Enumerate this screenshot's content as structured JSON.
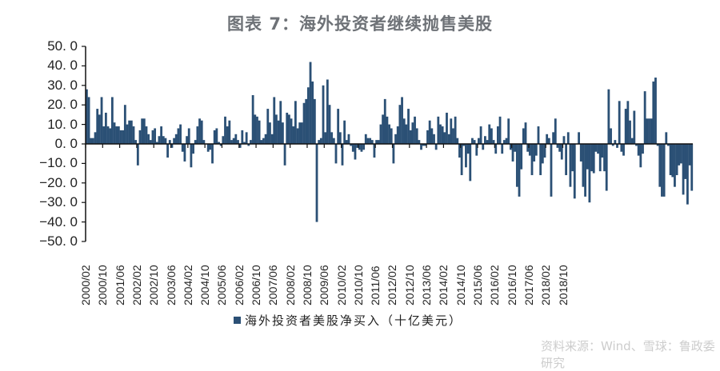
{
  "title": "图表 7：海外投资者继续抛售美股",
  "legend": {
    "label": "海外投资者美股净买入（十亿美元）",
    "color": "#2b5075"
  },
  "watermark": "资料来源：Wind、雪球：鲁政委研究",
  "chart_data": {
    "type": "bar",
    "title": "图表 7：海外投资者继续抛售美股",
    "xlabel": "",
    "ylabel": "",
    "ylim": [
      -50,
      50
    ],
    "yticks": [
      "50.0",
      "40.0",
      "30.0",
      "20.0",
      "10.0",
      "0.0",
      "-10.0",
      "-20.0",
      "-30.0",
      "-40.0",
      "-50.0"
    ],
    "xtick_labels": [
      "2000/02",
      "2000/10",
      "2001/06",
      "2002/02",
      "2002/10",
      "2003/06",
      "2004/02",
      "2004/10",
      "2005/06",
      "2006/02",
      "2006/10",
      "2007/06",
      "2008/02",
      "2008/10",
      "2009/06",
      "2010/02",
      "2010/10",
      "2011/06",
      "2012/02",
      "2012/10",
      "2013/06",
      "2014/02",
      "2014/10",
      "2015/06",
      "2016/02",
      "2016/10",
      "2017/06",
      "2018/02",
      "2018/10"
    ],
    "grid": false,
    "legend_position": "bottom",
    "series": [
      {
        "name": "海外投资者美股净买入（十亿美元）",
        "start": "2000/02",
        "frequency": "monthly",
        "values": [
          28,
          24,
          3,
          3,
          6,
          18,
          15,
          24,
          9,
          16,
          9,
          8,
          24,
          11,
          9,
          9,
          7,
          7,
          20,
          10,
          12,
          12,
          9,
          2,
          -11,
          7,
          13,
          13,
          9,
          5,
          2,
          7,
          8,
          1,
          4,
          9,
          4,
          3,
          -7,
          2,
          -2,
          3,
          5,
          8,
          10,
          -4,
          -9,
          4,
          8,
          -12,
          -5,
          2,
          9,
          13,
          12,
          2,
          0,
          -4,
          -3,
          -10,
          7,
          8,
          1,
          -1,
          4,
          14,
          9,
          12,
          2,
          3,
          5,
          2,
          -2,
          7,
          1,
          6,
          -1,
          2,
          25,
          15,
          14,
          12,
          2,
          3,
          5,
          18,
          11,
          5,
          24,
          15,
          12,
          22,
          11,
          -11,
          16,
          15,
          13,
          9,
          22,
          8,
          11,
          11,
          21,
          23,
          29,
          42,
          32,
          23,
          -40,
          2,
          3,
          30,
          6,
          33,
          20,
          6,
          3,
          -10,
          18,
          6,
          -11,
          12,
          2,
          5,
          -1,
          -4,
          -8,
          -2,
          -3,
          -4,
          -3,
          5,
          3,
          3,
          2,
          -7,
          2,
          2,
          10,
          15,
          23,
          14,
          10,
          8,
          -10,
          5,
          9,
          20,
          24,
          13,
          10,
          18,
          7,
          11,
          14,
          8,
          2,
          -3,
          -1,
          -1,
          7,
          12,
          8,
          5,
          -3,
          14,
          10,
          9,
          6,
          16,
          5,
          13,
          8,
          14,
          3,
          -7,
          -16,
          -1,
          -12,
          -5,
          -19,
          3,
          2,
          -6,
          3,
          9,
          -3,
          4,
          2,
          10,
          8,
          2,
          -5,
          9,
          14,
          -5,
          2,
          3,
          13,
          -3,
          -9,
          -4,
          -22,
          -27,
          -13,
          8,
          11,
          -4,
          -6,
          -16,
          -9,
          -6,
          9,
          -16,
          -10,
          -7,
          5,
          3,
          -27,
          6,
          13,
          -2,
          -4,
          -8,
          4,
          -16,
          6,
          -22,
          -14,
          -28,
          0,
          6,
          -9,
          -22,
          -27,
          -13,
          -30,
          -14,
          -15,
          -4,
          -5,
          -14,
          -7,
          -14,
          -24,
          28,
          8,
          -1,
          2,
          -2,
          22,
          -4,
          -6,
          18,
          22,
          12,
          3,
          17,
          -1,
          -6,
          -12,
          -5,
          27,
          13,
          13,
          13,
          32,
          34,
          -1,
          -22,
          -27,
          -27,
          6,
          -1,
          -16,
          -17,
          -22,
          -16,
          -11,
          -10,
          -26,
          -18,
          -31,
          -11,
          -24
        ]
      }
    ]
  }
}
